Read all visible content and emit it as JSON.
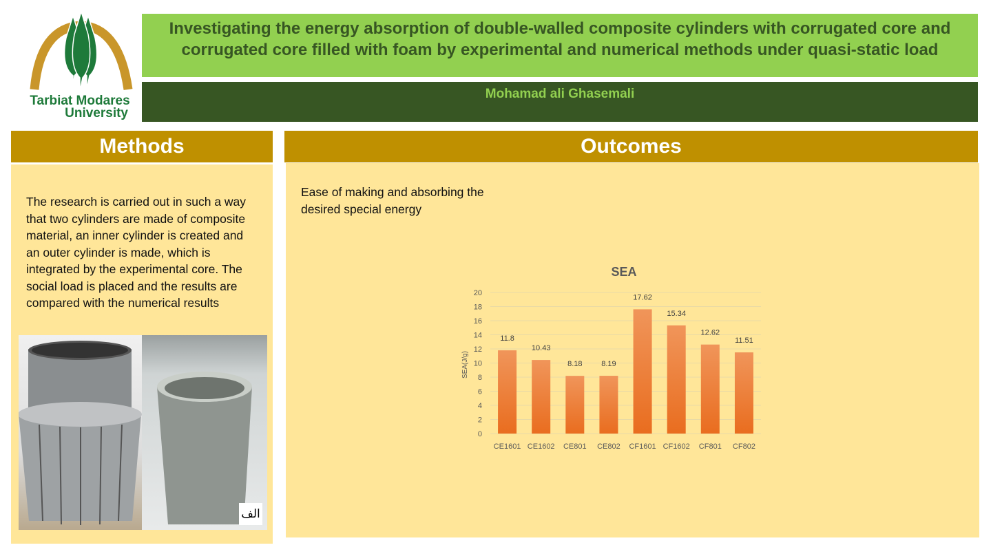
{
  "logo": {
    "line1": "Tarbiat Modares",
    "line2": "University"
  },
  "title": "Investigating the energy absorption of double-walled composite cylinders with corrugated core and corrugated core filled with foam by experimental and numerical methods under quasi-static load",
  "author": "Mohamad ali Ghasemali",
  "methods": {
    "heading": "Methods",
    "text": "The research is carried out in such a way that two cylinders are made of composite material, an inner cylinder is created and an outer cylinder is made, which is integrated by the experimental core. The social load is placed and the results are compared with the numerical results",
    "photo_label": "الف"
  },
  "outcomes": {
    "heading": "Outcomes",
    "text": "Ease of making and absorbing the desired special energy"
  },
  "chart_data": {
    "type": "bar",
    "title": "SEA",
    "xlabel": "",
    "ylabel": "SEA(J/g)",
    "categories": [
      "CE1601",
      "CE1602",
      "CE801",
      "CE802",
      "CF1601",
      "CF1602",
      "CF801",
      "CF802"
    ],
    "values": [
      11.8,
      10.43,
      8.18,
      8.19,
      17.62,
      15.34,
      12.62,
      11.51
    ],
    "value_labels": [
      "11.8",
      "10.43",
      "8.18",
      "8.19",
      "17.62",
      "15.34",
      "12.62",
      "11.51"
    ],
    "ylim": [
      0,
      20
    ],
    "yticks": [
      0,
      2,
      4,
      6,
      8,
      10,
      12,
      14,
      16,
      18,
      20
    ],
    "grid": true,
    "bar_color": "#ed7d31"
  },
  "colors": {
    "title_bg": "#92d050",
    "author_bg": "#375623",
    "header_bg": "#bf9000",
    "panel_bg": "#ffe699"
  }
}
